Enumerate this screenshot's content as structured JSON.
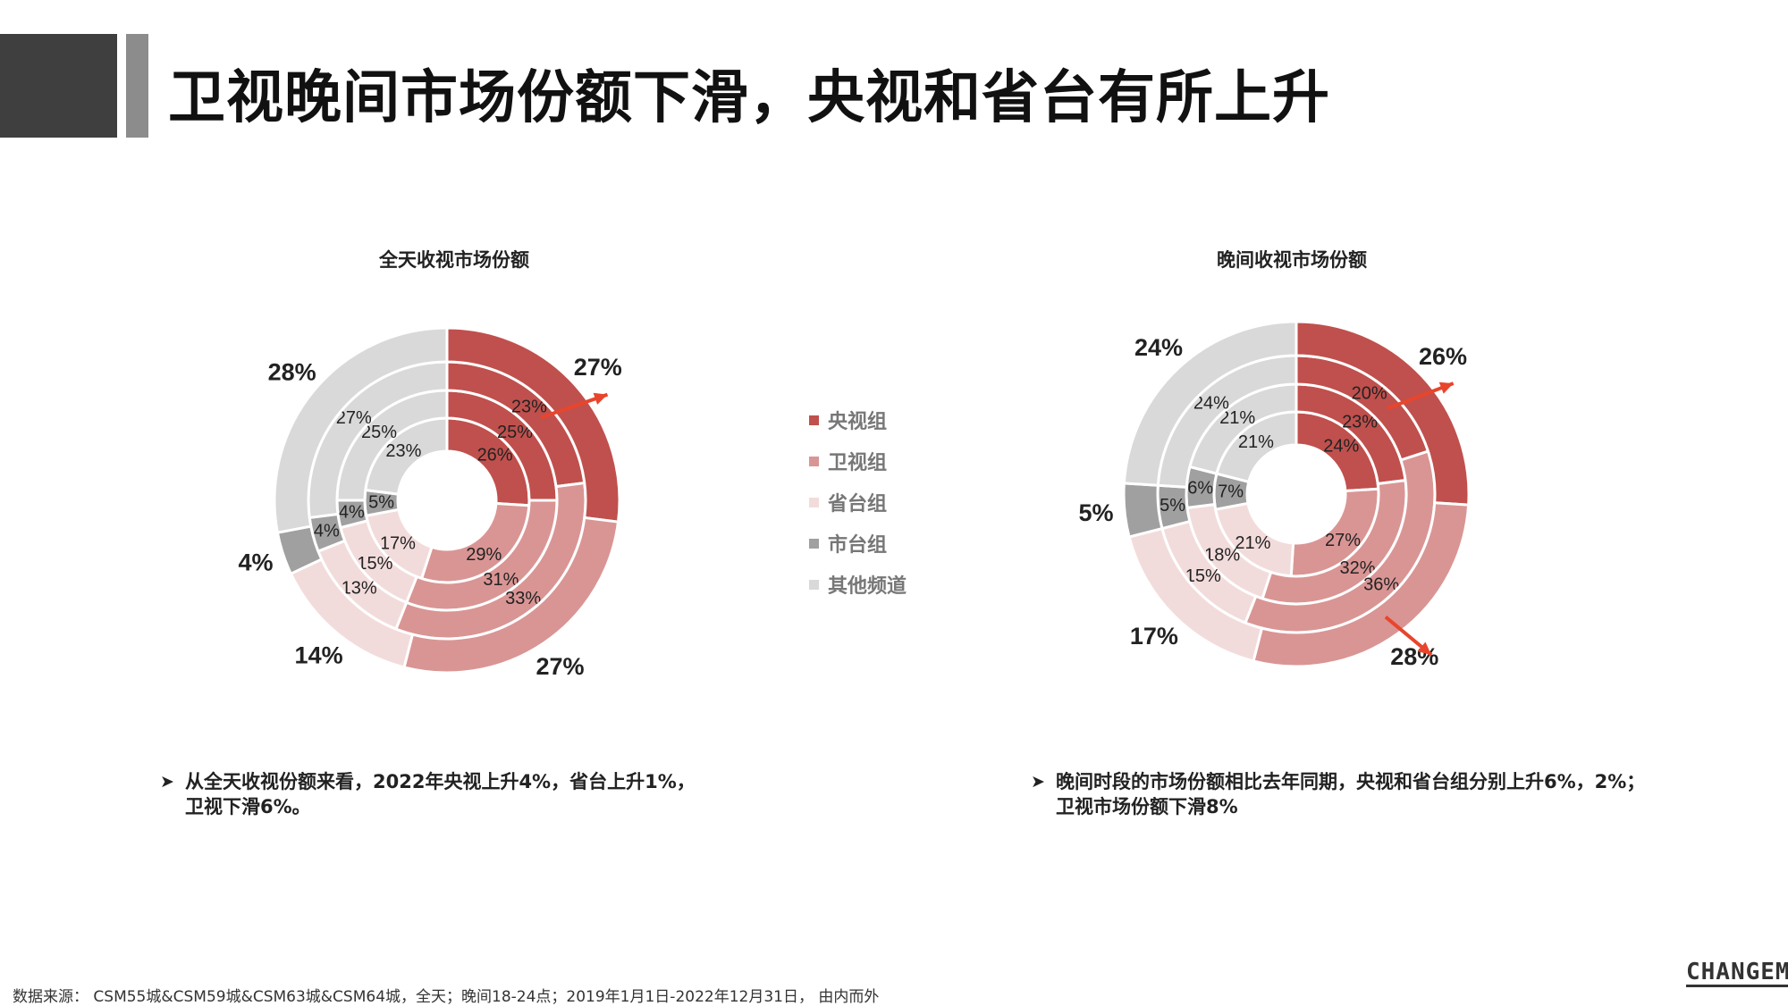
{
  "header": {
    "title": "卫视晚间市场份额下滑，央视和省台有所上升"
  },
  "legend": [
    {
      "label": "央视组",
      "color": "#c0504d"
    },
    {
      "label": "卫视组",
      "color": "#d99594"
    },
    {
      "label": "省台组",
      "color": "#f2dcdb"
    },
    {
      "label": "市台组",
      "color": "#a0a0a0"
    },
    {
      "label": "其他频道",
      "color": "#d9d9d9"
    }
  ],
  "chart_data": [
    {
      "type": "donut",
      "title": "全天收视市场份额",
      "series_order": "由内而外",
      "categories": [
        "央视组",
        "卫视组",
        "省台组",
        "市台组",
        "其他频道"
      ],
      "rings": [
        {
          "values": [
            26,
            29,
            17,
            5,
            23
          ],
          "labels": [
            "26%",
            "29%",
            "17%",
            "5%",
            "23%"
          ]
        },
        {
          "values": [
            25,
            31,
            15,
            4,
            25
          ],
          "labels": [
            "25%",
            "31%",
            "15%",
            "4%",
            "25%"
          ]
        },
        {
          "values": [
            23,
            33,
            13,
            4,
            27
          ],
          "labels": [
            "23%",
            "33%",
            "13%",
            "4%",
            "27%"
          ]
        },
        {
          "values": [
            27,
            27,
            14,
            4,
            28
          ],
          "labels": [
            "27%",
            "27%",
            "14%",
            "4%",
            "28%"
          ]
        }
      ],
      "arrows": [
        {
          "category": "央视组",
          "direction": "up"
        }
      ]
    },
    {
      "type": "donut",
      "title": "晚间收视市场份额",
      "series_order": "由内而外",
      "categories": [
        "央视组",
        "卫视组",
        "省台组",
        "市台组",
        "其他频道"
      ],
      "rings": [
        {
          "values": [
            24,
            27,
            21,
            7,
            21
          ],
          "labels": [
            "24%",
            "27%",
            "21%",
            "7%",
            "21%"
          ]
        },
        {
          "values": [
            23,
            32,
            18,
            6,
            21
          ],
          "labels": [
            "23%",
            "32%",
            "18%",
            "6%",
            "21%"
          ]
        },
        {
          "values": [
            20,
            36,
            15,
            5,
            24
          ],
          "labels": [
            "20%",
            "36%",
            "15%",
            "5%",
            "24%"
          ]
        },
        {
          "values": [
            26,
            28,
            17,
            5,
            24
          ],
          "labels": [
            "26%",
            "28%",
            "17%",
            "5%",
            "24%"
          ]
        }
      ],
      "arrows": [
        {
          "category": "央视组",
          "direction": "up"
        },
        {
          "category": "卫视组",
          "direction": "down"
        }
      ]
    }
  ],
  "notes": {
    "left": {
      "line1": "从全天收视份额来看，2022年央视上升4%，省台上升1%，",
      "line2": "卫视下滑6%。"
    },
    "right": {
      "line1": "晚间时段的市场份额相比去年同期，央视和省台组分别上升6%，2%；",
      "line2": "卫视市场份额下滑8%"
    }
  },
  "footer": {
    "source": "数据来源： CSM55城&CSM59城&CSM63城&CSM64城，全天；晚间18-24点；2019年1月1日-2022年12月31日， 由内而外"
  },
  "logo": {
    "text": "CHANGEMO"
  }
}
